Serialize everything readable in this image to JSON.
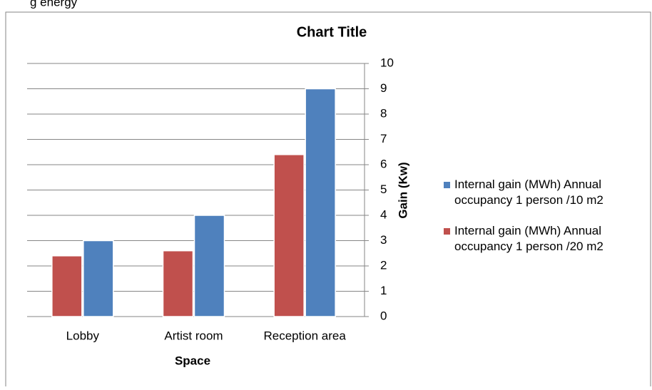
{
  "note": "g energy",
  "chart_data": {
    "type": "bar",
    "title": "Chart Title",
    "x_label": "Space",
    "y_label": "Gain (Kw)",
    "categories": [
      "Lobby",
      "Artist room",
      "Reception area"
    ],
    "series": [
      {
        "name": "Internal gain (MWh) Annual occupancy 1 person /10 m2",
        "color": "#4f81bd",
        "values": [
          3.0,
          4.0,
          9.0
        ]
      },
      {
        "name": "Internal gain (MWh) Annual occupancy 1 person /20 m2",
        "color": "#c0504d",
        "values": [
          2.4,
          2.6,
          6.4
        ]
      }
    ],
    "ylim": [
      0,
      10
    ],
    "yticks": [
      0,
      1,
      2,
      3,
      4,
      5,
      6,
      7,
      8,
      9,
      10
    ],
    "grid": true,
    "y_axis_side": "right",
    "legend": "right"
  }
}
